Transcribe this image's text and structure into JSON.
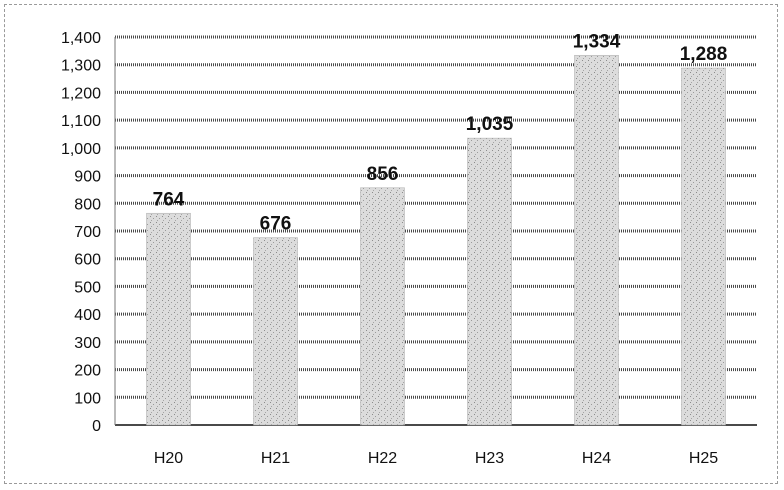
{
  "chart_data": {
    "type": "bar",
    "categories": [
      "H20",
      "H21",
      "H22",
      "H23",
      "H24",
      "H25"
    ],
    "values": [
      764,
      676,
      856,
      1035,
      1334,
      1288
    ],
    "data_labels": [
      "764",
      "676",
      "856",
      "1,035",
      "1,334",
      "1,288"
    ],
    "ylim": [
      0,
      1400
    ],
    "y_ticks": [
      0,
      100,
      200,
      300,
      400,
      500,
      600,
      700,
      800,
      900,
      1000,
      1100,
      1200,
      1300,
      1400
    ],
    "y_tick_labels": [
      "0",
      "100",
      "200",
      "300",
      "400",
      "500",
      "600",
      "700",
      "800",
      "900",
      "1,000",
      "1,100",
      "1,200",
      "1,300",
      "1,400"
    ],
    "grid": true,
    "legend": "none",
    "colors": {
      "bar": "#d9d9d9",
      "bar_stipple": "#8c8c8c",
      "grid": "#4a4a4a",
      "text": "#111111"
    }
  }
}
